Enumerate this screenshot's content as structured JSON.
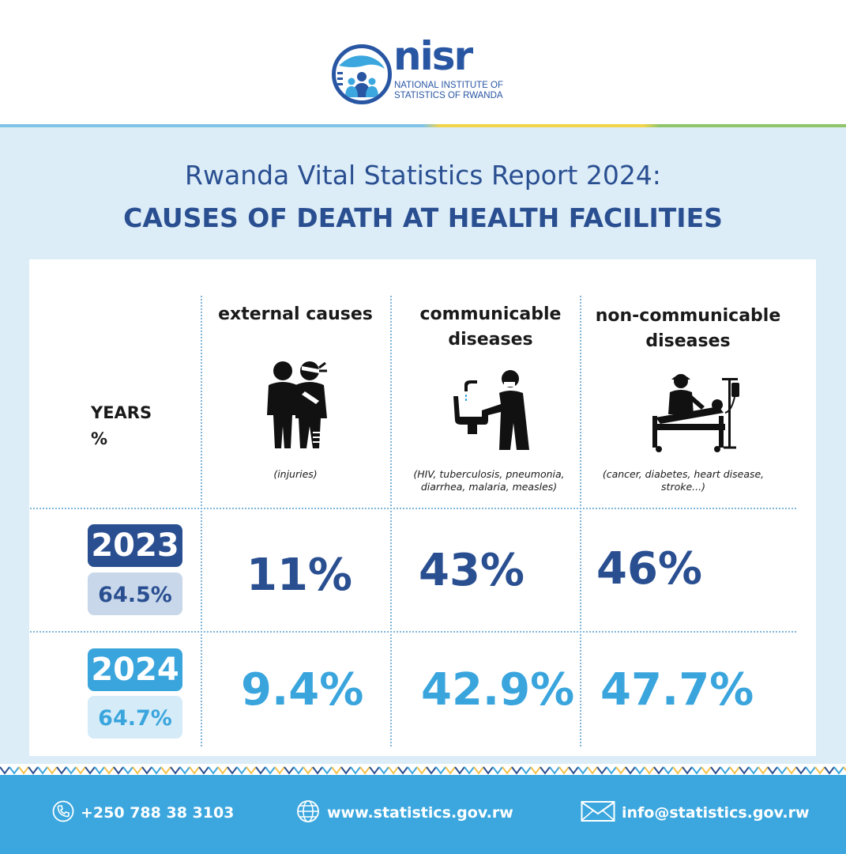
{
  "header": {
    "logo_word": "nisr",
    "logo_sub_line1": "NATIONAL INSTITUTE OF",
    "logo_sub_line2": "STATISTICS OF RWANDA"
  },
  "title": {
    "line1": "Rwanda Vital Statistics Report 2024:",
    "line2": "CAUSES OF DEATH AT HEALTH FACILITIES"
  },
  "row_header": {
    "line1": "YEARS",
    "line2": "%"
  },
  "columns": [
    {
      "label_line1": "external causes",
      "label_line2": "",
      "icon": "injured-people-icon",
      "note_line1": "(injuries)",
      "note_line2": ""
    },
    {
      "label_line1": "communicable",
      "label_line2": "diseases",
      "icon": "handwashing-person-icon",
      "note_line1": "(HIV, tuberculosis, pneumonia,",
      "note_line2": "diarrhea, malaria, measles)"
    },
    {
      "label_line1": "non-communicable",
      "label_line2": "diseases",
      "icon": "hospital-bed-patient-icon",
      "note_line1": "(cancer, diabetes, heart disease,",
      "note_line2": "stroke...)"
    }
  ],
  "rows": [
    {
      "year": "2023",
      "share": "64.5%",
      "values": [
        "11%",
        "43%",
        "46%"
      ]
    },
    {
      "year": "2024",
      "share": "64.7%",
      "values": [
        "9.4%",
        "42.9%",
        "47.7%"
      ]
    }
  ],
  "footer": {
    "phone": "+250 788 38 3103",
    "website": "www.statistics.gov.rw",
    "email": "info@statistics.gov.rw"
  },
  "colors": {
    "dark_blue": "#2a4f91",
    "light_blue": "#3aa5dd",
    "background": "#dcedf8",
    "footer": "#3ba7de"
  }
}
